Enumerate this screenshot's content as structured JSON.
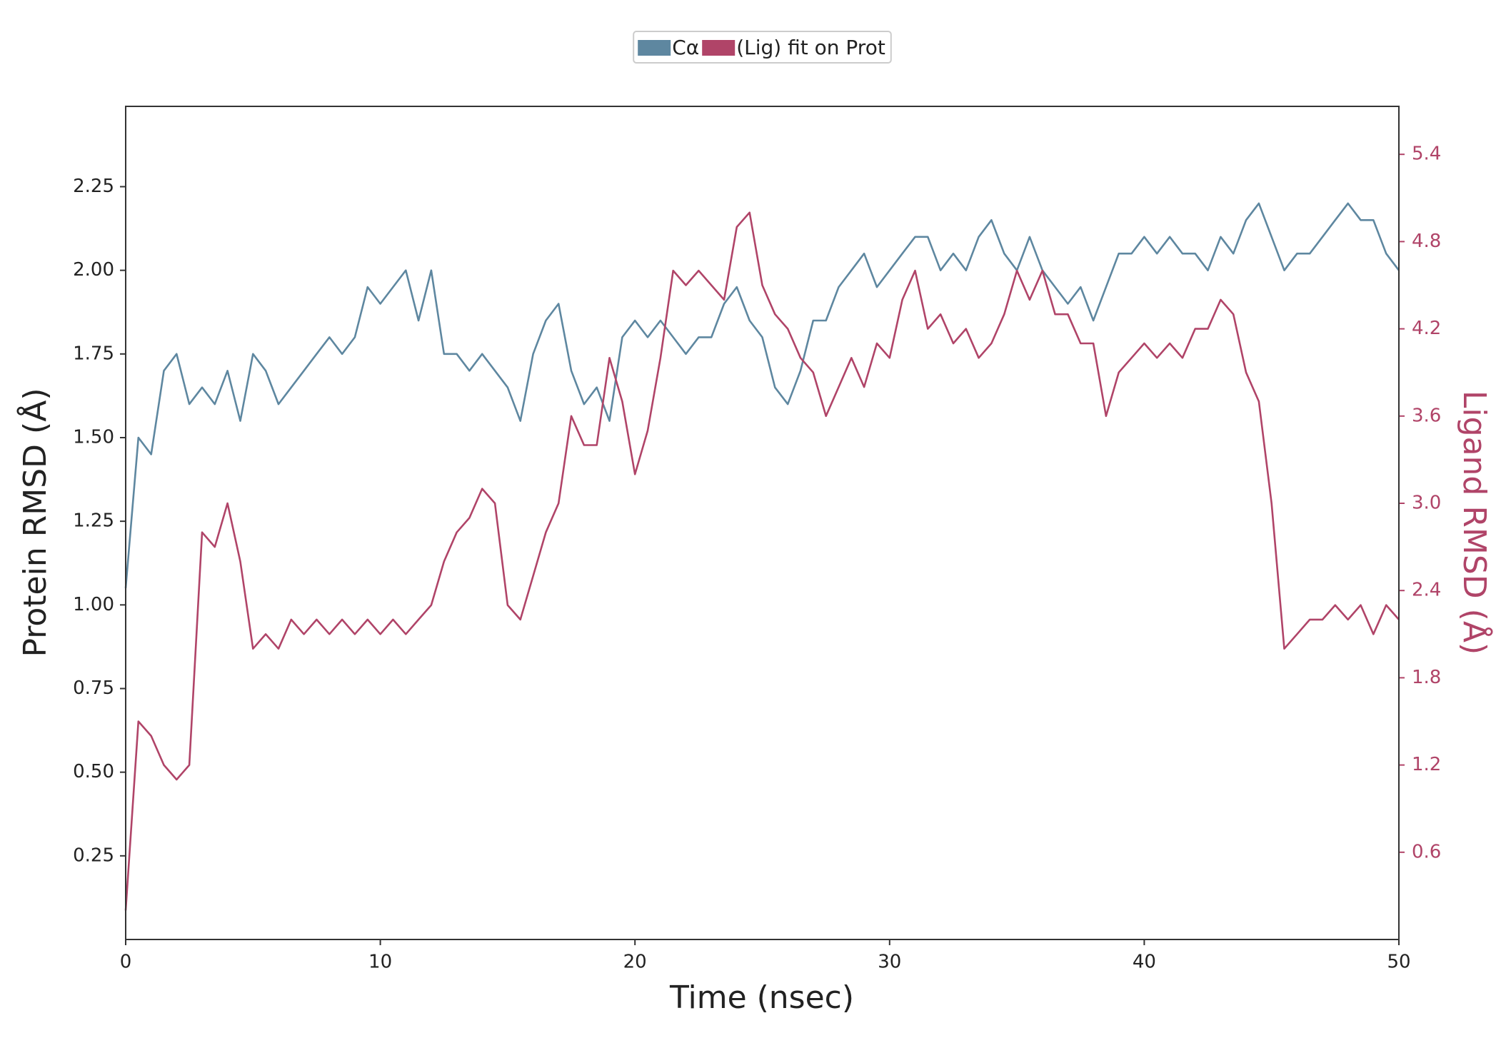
{
  "chart_data": {
    "type": "line",
    "xlabel": "Time (nsec)",
    "ylabel": "Protein RMSD (Å)",
    "y2label": "Ligand RMSD (Å)",
    "xlim": [
      0,
      50
    ],
    "xticks": [
      0,
      10,
      20,
      30,
      40,
      50
    ],
    "ylim": [
      0,
      2.49
    ],
    "yticks": [
      {
        "value": 0.25,
        "label": "0.25"
      },
      {
        "value": 0.5,
        "label": "0.50"
      },
      {
        "value": 0.75,
        "label": "0.75"
      },
      {
        "value": 1,
        "label": "1.00"
      },
      {
        "value": 1.25,
        "label": "1.25"
      },
      {
        "value": 1.5,
        "label": "1.50"
      },
      {
        "value": 1.75,
        "label": "1.75"
      },
      {
        "value": 2,
        "label": "2.00"
      },
      {
        "value": 2.25,
        "label": "2.25"
      }
    ],
    "y2lim": [
      0,
      5.73
    ],
    "y2ticks": [
      0.6,
      1.2,
      1.8,
      2.4,
      {
        "value": 3,
        "label": "3.0"
      },
      3.6,
      4.2,
      4.8,
      5.4
    ],
    "y2color": "#b04468",
    "grid": false,
    "legend": "top",
    "x": [
      0,
      0.5,
      1,
      1.5,
      2,
      2.5,
      3,
      3.5,
      4,
      4.5,
      5,
      5.5,
      6,
      6.5,
      7,
      7.5,
      8,
      8.5,
      9,
      9.5,
      10,
      10.5,
      11,
      11.5,
      12,
      12.5,
      13,
      13.5,
      14,
      14.5,
      15,
      15.5,
      16,
      16.5,
      17,
      17.5,
      18,
      18.5,
      19,
      19.5,
      20,
      20.5,
      21,
      21.5,
      22,
      22.5,
      23,
      23.5,
      24,
      24.5,
      25,
      25.5,
      26,
      26.5,
      27,
      27.5,
      28,
      28.5,
      29,
      29.5,
      30,
      30.5,
      31,
      31.5,
      32,
      32.5,
      33,
      33.5,
      34,
      34.5,
      35,
      35.5,
      36,
      36.5,
      37,
      37.5,
      38,
      38.5,
      39,
      39.5,
      40,
      40.5,
      41,
      41.5,
      42,
      42.5,
      43,
      43.5,
      44,
      44.5,
      45,
      45.5,
      46,
      46.5,
      47,
      47.5,
      48,
      48.5,
      49,
      49.5,
      50
    ],
    "series": [
      {
        "name": "Cα",
        "color": "#5e87a0",
        "axis": "y",
        "values": [
          1.05,
          1.5,
          1.45,
          1.7,
          1.75,
          1.6,
          1.65,
          1.6,
          1.7,
          1.55,
          1.75,
          1.7,
          1.6,
          1.65,
          1.7,
          1.75,
          1.8,
          1.75,
          1.8,
          1.95,
          1.9,
          1.95,
          2.0,
          1.85,
          2.0,
          1.75,
          1.75,
          1.7,
          1.75,
          1.7,
          1.65,
          1.55,
          1.75,
          1.85,
          1.9,
          1.7,
          1.6,
          1.65,
          1.55,
          1.8,
          1.85,
          1.8,
          1.85,
          1.8,
          1.75,
          1.8,
          1.8,
          1.9,
          1.95,
          1.85,
          1.8,
          1.65,
          1.6,
          1.7,
          1.85,
          1.85,
          1.95,
          2.0,
          2.05,
          1.95,
          2.0,
          2.05,
          2.1,
          2.1,
          2.0,
          2.05,
          2.0,
          2.1,
          2.15,
          2.05,
          2.0,
          2.1,
          2.0,
          1.95,
          1.9,
          1.95,
          1.85,
          1.95,
          2.05,
          2.05,
          2.1,
          2.05,
          2.1,
          2.05,
          2.05,
          2.0,
          2.1,
          2.05,
          2.15,
          2.2,
          2.1,
          2.0,
          2.05,
          2.05,
          2.1,
          2.15,
          2.2,
          2.15,
          2.15,
          2.05,
          2.0
        ]
      },
      {
        "name": "(Lig) fit on Prot",
        "color": "#b04468",
        "axis": "y2",
        "values": [
          0.2,
          1.5,
          1.4,
          1.2,
          1.1,
          1.2,
          2.8,
          2.7,
          3.0,
          2.6,
          2.0,
          2.1,
          2.0,
          2.2,
          2.1,
          2.2,
          2.1,
          2.2,
          2.1,
          2.2,
          2.1,
          2.2,
          2.1,
          2.2,
          2.3,
          2.6,
          2.8,
          2.9,
          3.1,
          3.0,
          2.3,
          2.2,
          2.5,
          2.8,
          3.0,
          3.6,
          3.4,
          3.4,
          4.0,
          3.7,
          3.2,
          3.5,
          4.0,
          4.6,
          4.5,
          4.6,
          4.5,
          4.4,
          4.9,
          5.0,
          4.5,
          4.3,
          4.2,
          4.0,
          3.9,
          3.6,
          3.8,
          4.0,
          3.8,
          4.1,
          4.0,
          4.4,
          4.6,
          4.2,
          4.3,
          4.1,
          4.2,
          4.0,
          4.1,
          4.3,
          4.6,
          4.4,
          4.6,
          4.3,
          4.3,
          4.1,
          4.1,
          3.6,
          3.9,
          4.0,
          4.1,
          4.0,
          4.1,
          4.0,
          4.2,
          4.2,
          4.4,
          4.3,
          3.9,
          3.7,
          3.0,
          2.0,
          2.1,
          2.2,
          2.2,
          2.3,
          2.2,
          2.3,
          2.1,
          2.3,
          2.2
        ]
      }
    ]
  }
}
